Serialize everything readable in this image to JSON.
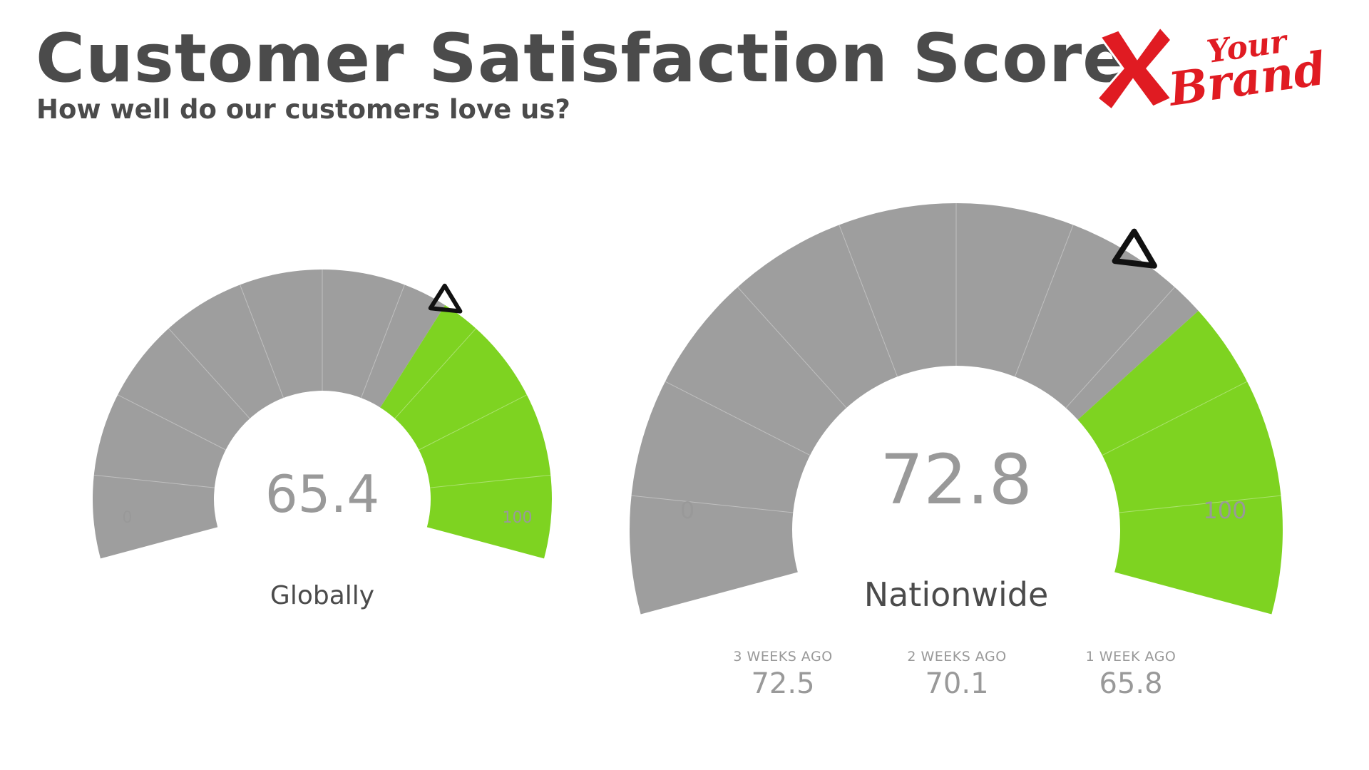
{
  "header": {
    "title": "Customer Satisfaction Score",
    "subtitle": "How well do our customers love us?"
  },
  "logo": {
    "icon": "red-x-mark-icon",
    "text_line1": "Your",
    "text_line2": "Brand",
    "color": "#e01b22"
  },
  "colors": {
    "track": "#9e9e9e",
    "fill": "#7ed321",
    "value_text": "#999999",
    "marker": "#111111"
  },
  "chart_data": [
    {
      "type": "gauge",
      "title": "Globally",
      "value": 65.4,
      "display_value": "65.4",
      "min": 0,
      "max": 100,
      "min_label": "0",
      "max_label": "100",
      "marker": 65.4
    },
    {
      "type": "gauge",
      "title": "Nationwide",
      "value": 72.8,
      "display_value": "72.8",
      "min": 0,
      "max": 100,
      "min_label": "0",
      "max_label": "100",
      "marker": 65.8,
      "history": [
        {
          "label": "3 WEEKS AGO",
          "value": "72.5"
        },
        {
          "label": "2 WEEKS AGO",
          "value": "70.1"
        },
        {
          "label": "1 WEEK AGO",
          "value": "65.8"
        }
      ]
    }
  ]
}
